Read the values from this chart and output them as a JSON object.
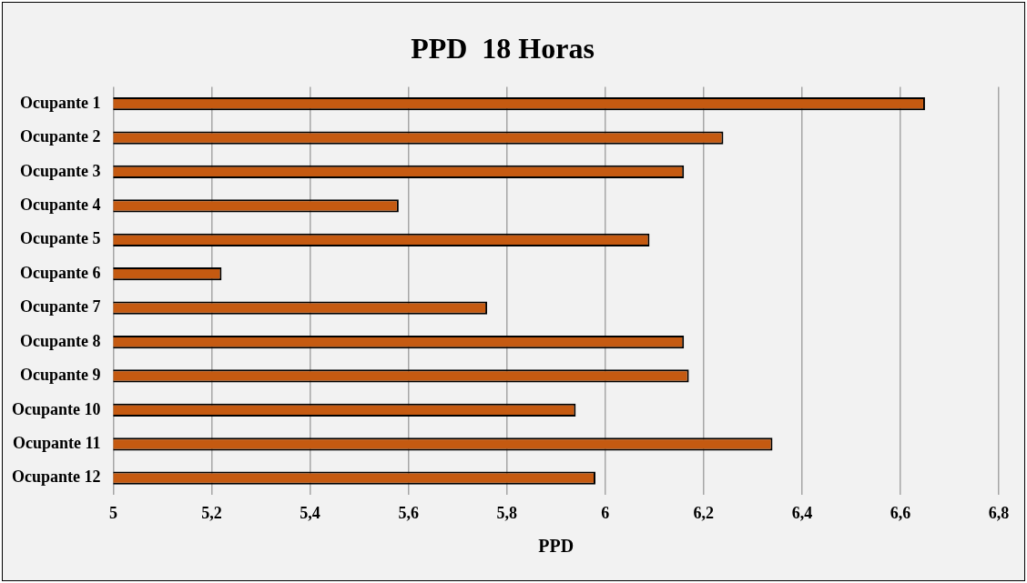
{
  "chart_data": {
    "type": "bar",
    "orientation": "horizontal",
    "title": "PPD  18 Horas",
    "xlabel": "PPD",
    "categories": [
      "Ocupante 1",
      "Ocupante 2",
      "Ocupante 3",
      "Ocupante 4",
      "Ocupante 5",
      "Ocupante 6",
      "Ocupante 7",
      "Ocupante 8",
      "Ocupante 9",
      "Ocupante 10",
      "Ocupante 11",
      "Ocupante 12"
    ],
    "values": [
      6.65,
      6.24,
      6.16,
      5.58,
      6.09,
      5.22,
      5.76,
      6.16,
      6.17,
      5.94,
      6.34,
      5.98
    ],
    "color": "#c55a11",
    "xlim": [
      5,
      6.8
    ],
    "xticks": [
      5,
      {
        "value": 5.2,
        "label": "5,2"
      },
      {
        "value": 5.4,
        "label": "5,4"
      },
      {
        "value": 5.6,
        "label": "5,6"
      },
      {
        "value": 5.8,
        "label": "5,8"
      },
      6,
      {
        "value": 6.2,
        "label": "6,2"
      },
      {
        "value": 6.4,
        "label": "6,4"
      },
      {
        "value": 6.6,
        "label": "6,6"
      },
      {
        "value": 6.8,
        "label": "6,8"
      }
    ],
    "grid": "x",
    "legend": false
  }
}
